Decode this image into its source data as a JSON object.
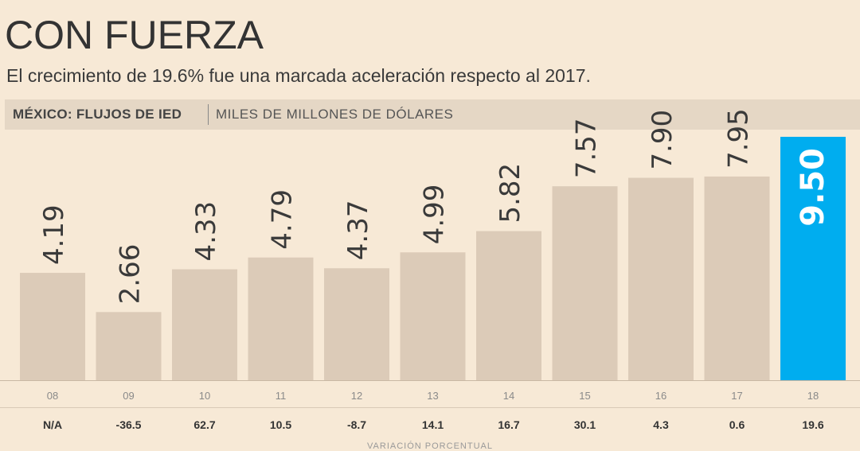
{
  "header": {
    "title": "CON FUERZA",
    "subtitle": "El crecimiento de 19.6% fue una marcada aceleración respecto al 2017.",
    "band_bold": "MÉXICO: FLUJOS DE IED",
    "band_light": "MILES DE MILLONES DE DÓLARES"
  },
  "chart_data": {
    "type": "bar",
    "categories": [
      "08",
      "09",
      "10",
      "11",
      "12",
      "13",
      "14",
      "15",
      "16",
      "17",
      "18"
    ],
    "values": [
      4.19,
      2.66,
      4.33,
      4.79,
      4.37,
      4.99,
      5.82,
      7.57,
      7.9,
      7.95,
      9.5
    ],
    "value_labels": [
      "4.19",
      "2.66",
      "4.33",
      "4.79",
      "4.37",
      "4.99",
      "5.82",
      "7.57",
      "7.90",
      "7.95",
      "9.50"
    ],
    "pct_change": [
      "N/A",
      "-36.5",
      "62.7",
      "10.5",
      "-8.7",
      "14.1",
      "16.7",
      "30.1",
      "4.3",
      "0.6",
      "19.6"
    ],
    "pct_label": "VARIACIÓN PORCENTUAL",
    "ylim": [
      0,
      9.5
    ],
    "highlight_index": 10,
    "colors": {
      "bar": "#dccbb8",
      "highlight": "#00adef",
      "label": "#3a3a3a",
      "highlight_label": "#ffffff"
    }
  }
}
